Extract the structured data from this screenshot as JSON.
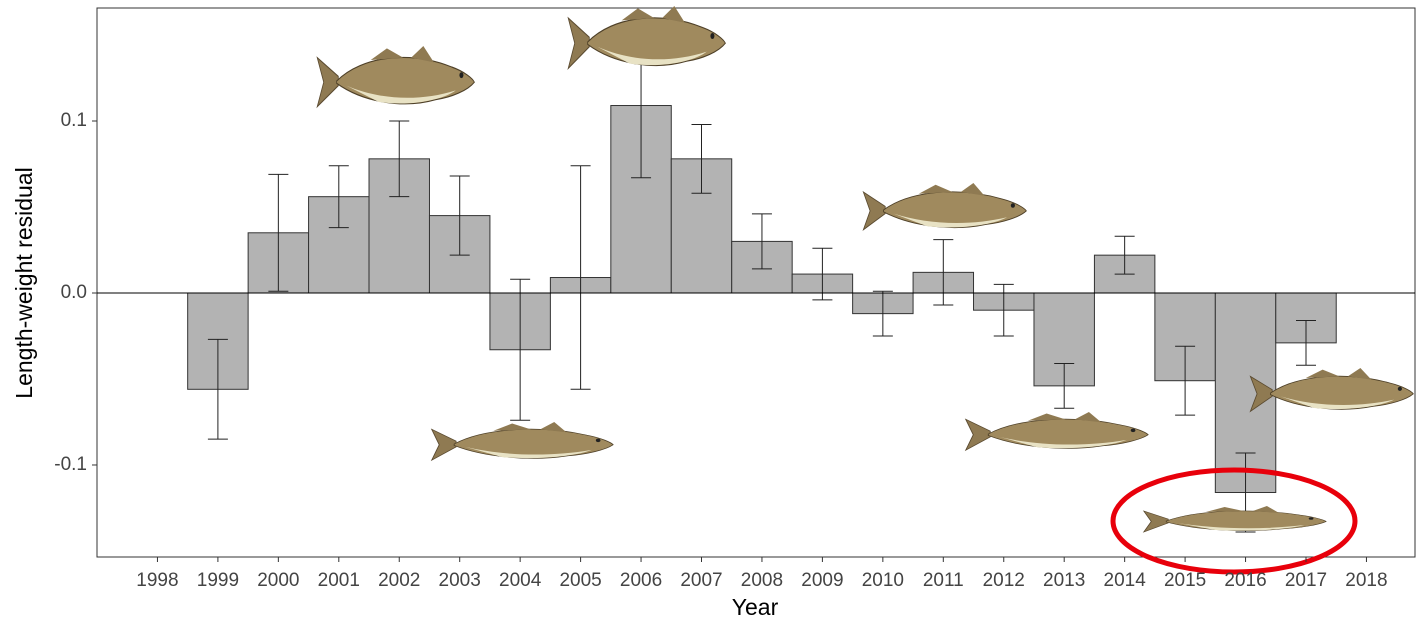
{
  "chart_data": {
    "type": "bar",
    "x_label": "Year",
    "y_label": "Length-weight residual",
    "categories": [
      "1998",
      "1999",
      "2000",
      "2001",
      "2002",
      "2003",
      "2004",
      "2005",
      "2006",
      "2007",
      "2008",
      "2009",
      "2010",
      "2011",
      "2012",
      "2013",
      "2014",
      "2015",
      "2016",
      "2017",
      "2018"
    ],
    "values": [
      null,
      -0.056,
      0.035,
      0.056,
      0.078,
      0.045,
      -0.033,
      0.009,
      0.109,
      0.078,
      0.03,
      0.011,
      -0.012,
      0.012,
      -0.01,
      -0.054,
      0.022,
      -0.051,
      -0.116,
      -0.029,
      null
    ],
    "errors": [
      null,
      0.029,
      0.034,
      0.018,
      0.022,
      0.023,
      0.041,
      0.065,
      0.042,
      0.02,
      0.016,
      0.015,
      0.013,
      0.019,
      0.015,
      0.013,
      0.011,
      0.02,
      0.023,
      0.013,
      null
    ],
    "color": "#b3b3b3",
    "ylim": [
      -0.1535,
      0.1657
    ],
    "yticks": [
      -0.1,
      {
        "value": 0,
        "label": "0.0"
      },
      0.1
    ],
    "grid": false
  }
}
